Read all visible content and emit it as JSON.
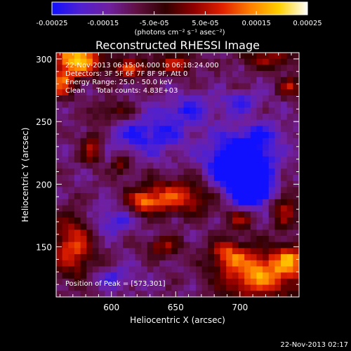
{
  "chart_data": {
    "type": "heatmap",
    "title": "Reconstructed RHESSI Image",
    "xlabel": "Heliocentric X (arcsec)",
    "ylabel": "Heliocentric Y (arcsec)",
    "xlim": [
      557,
      746
    ],
    "ylim": [
      110,
      305
    ],
    "xticks": [
      600,
      650,
      700
    ],
    "yticks": [
      150,
      200,
      250,
      300
    ],
    "colorbar": {
      "range": [
        -0.00025,
        0.00025
      ],
      "ticks": [
        "-0.00025",
        "-0.00015",
        "-5.0e-05",
        "5.0e-05",
        "0.00015",
        "0.00025"
      ],
      "tick_values": [
        -0.00025,
        -0.00015,
        -5e-05,
        5e-05,
        0.00015,
        0.00025
      ],
      "unit_label": "(photons cm⁻² s⁻¹ asec⁻²)",
      "colormap": [
        "#1010ff",
        "#5020d0",
        "#7020a0",
        "#601040",
        "#300000",
        "#900000",
        "#e02000",
        "#ff8000",
        "#ffd000",
        "#ffffff"
      ]
    },
    "annotations": [
      "22-Nov-2013 06:15:04.000 to 06:18:24.000",
      "Detectors: 3F 5F 6F 7F 8F 9F, Att 0",
      "Energy Range: 25.0 - 50.0 keV",
      "Clean     Total counts: 4.83E+03"
    ],
    "peak_label": "Position of Peak = [573,301]",
    "peak_position": [
      573,
      301
    ],
    "features": [
      {
        "x": 573,
        "y": 300,
        "rx": 14,
        "ry": 10,
        "value": 0.00024
      },
      {
        "x": 560,
        "y": 280,
        "rx": 8,
        "ry": 8,
        "value": 0.00016
      },
      {
        "x": 615,
        "y": 292,
        "rx": 10,
        "ry": 6,
        "value": 0.00014
      },
      {
        "x": 650,
        "y": 296,
        "rx": 12,
        "ry": 6,
        "value": 0.00012
      },
      {
        "x": 722,
        "y": 300,
        "rx": 16,
        "ry": 6,
        "value": 0.00011
      },
      {
        "x": 740,
        "y": 278,
        "rx": 6,
        "ry": 6,
        "value": 0.00012
      },
      {
        "x": 602,
        "y": 258,
        "rx": 12,
        "ry": 6,
        "value": 9e-05
      },
      {
        "x": 585,
        "y": 230,
        "rx": 6,
        "ry": 10,
        "value": 0.00012
      },
      {
        "x": 608,
        "y": 215,
        "rx": 5,
        "ry": 6,
        "value": 0.0001
      },
      {
        "x": 650,
        "y": 190,
        "rx": 22,
        "ry": 10,
        "value": 0.00016
      },
      {
        "x": 625,
        "y": 186,
        "rx": 8,
        "ry": 6,
        "value": 0.00012
      },
      {
        "x": 570,
        "y": 150,
        "rx": 12,
        "ry": 18,
        "value": 0.00016
      },
      {
        "x": 640,
        "y": 150,
        "rx": 10,
        "ry": 6,
        "value": 0.00011
      },
      {
        "x": 700,
        "y": 172,
        "rx": 8,
        "ry": 6,
        "value": 0.0001
      },
      {
        "x": 735,
        "y": 180,
        "rx": 7,
        "ry": 12,
        "value": 0.00011
      },
      {
        "x": 740,
        "y": 140,
        "rx": 8,
        "ry": 8,
        "value": 0.00014
      },
      {
        "x": 715,
        "y": 128,
        "rx": 22,
        "ry": 14,
        "value": 0.00021
      },
      {
        "x": 690,
        "y": 145,
        "rx": 10,
        "ry": 8,
        "value": 0.00012
      },
      {
        "x": 700,
        "y": 215,
        "rx": 16,
        "ry": 16,
        "value": -0.00024
      },
      {
        "x": 710,
        "y": 195,
        "rx": 10,
        "ry": 8,
        "value": -0.00018
      },
      {
        "x": 630,
        "y": 240,
        "rx": 20,
        "ry": 12,
        "value": -0.0001
      },
      {
        "x": 660,
        "y": 260,
        "rx": 14,
        "ry": 8,
        "value": -8e-05
      },
      {
        "x": 600,
        "y": 170,
        "rx": 12,
        "ry": 8,
        "value": -8e-05
      },
      {
        "x": 700,
        "y": 265,
        "rx": 10,
        "ry": 6,
        "value": -8e-05
      },
      {
        "x": 600,
        "y": 125,
        "rx": 12,
        "ry": 6,
        "value": -7e-05
      },
      {
        "x": 720,
        "y": 240,
        "rx": 10,
        "ry": 8,
        "value": -6e-05
      }
    ]
  },
  "footer": {
    "timestamp": "22-Nov-2013 02:17"
  }
}
